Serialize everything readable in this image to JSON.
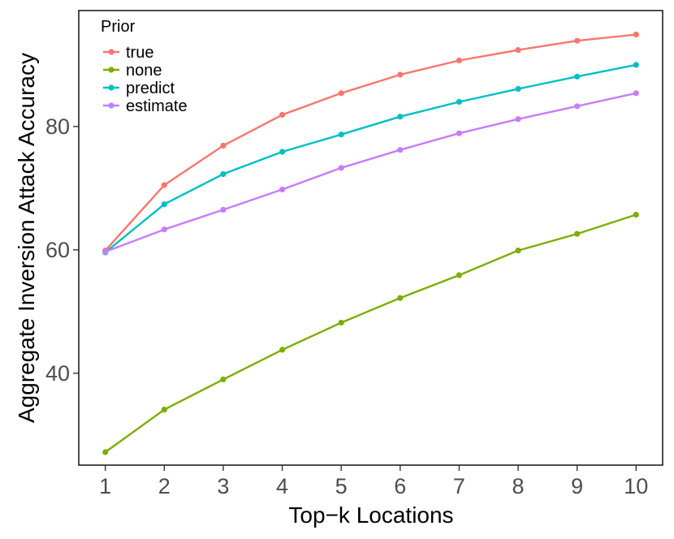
{
  "chart_data": {
    "type": "line",
    "xlabel": "Top−k Locations",
    "ylabel": "Aggregate Inversion Attack Accuracy",
    "x": [
      1,
      2,
      3,
      4,
      5,
      6,
      7,
      8,
      9,
      10
    ],
    "xlim": [
      0.55,
      10.45
    ],
    "ylim": [
      25.1,
      98.8
    ],
    "xticks": [
      "1",
      "2",
      "3",
      "4",
      "5",
      "6",
      "7",
      "8",
      "9",
      "10"
    ],
    "yticks": [
      40,
      60,
      80
    ],
    "ytick_labels": [
      "40",
      "60",
      "80"
    ],
    "grid": false,
    "legend": {
      "title": "Prior",
      "placement": "top-left-inside"
    },
    "series": [
      {
        "name": "true",
        "color": "#F8766D",
        "values": [
          59.9,
          70.5,
          76.9,
          81.9,
          85.4,
          88.4,
          90.7,
          92.4,
          93.9,
          94.9
        ]
      },
      {
        "name": "none",
        "color": "#7CAE00",
        "values": [
          27.2,
          34.1,
          39.0,
          43.8,
          48.2,
          52.2,
          55.9,
          59.9,
          62.6,
          65.7
        ]
      },
      {
        "name": "predict",
        "color": "#00BFC4",
        "values": [
          59.6,
          67.4,
          72.3,
          75.9,
          78.7,
          81.6,
          84.0,
          86.1,
          88.1,
          90.0
        ]
      },
      {
        "name": "estimate",
        "color": "#C77CFF",
        "values": [
          59.7,
          63.3,
          66.5,
          69.8,
          73.3,
          76.2,
          78.9,
          81.2,
          83.3,
          85.4
        ]
      }
    ]
  }
}
